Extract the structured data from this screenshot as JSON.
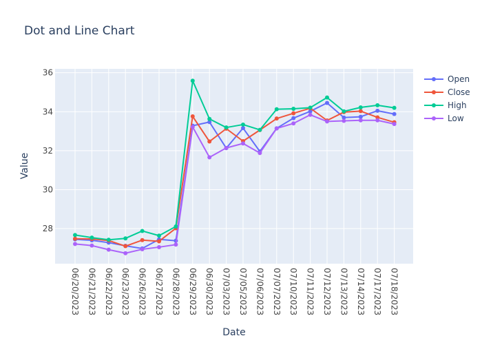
{
  "chart_data": {
    "type": "line",
    "title": "Dot and Line Chart",
    "xlabel": "Date",
    "ylabel": "Value",
    "categories": [
      "06/20/2023",
      "06/21/2023",
      "06/22/2023",
      "06/23/2023",
      "06/26/2023",
      "06/27/2023",
      "06/28/2023",
      "06/29/2023",
      "06/30/2023",
      "07/03/2023",
      "07/05/2023",
      "07/06/2023",
      "07/07/2023",
      "07/10/2023",
      "07/11/2023",
      "07/12/2023",
      "07/13/2023",
      "07/14/2023",
      "07/17/2023",
      "07/18/2023"
    ],
    "ylim": [
      26.2,
      36.2
    ],
    "yticks": [
      28,
      30,
      32,
      34,
      36
    ],
    "grid": true,
    "legend_position": "top-right",
    "background_color": "#e5ecf6",
    "mode": "lines+markers",
    "series": [
      {
        "name": "Open",
        "color": "#636efa",
        "values": [
          27.45,
          27.4,
          27.28,
          27.12,
          26.98,
          27.45,
          27.38,
          33.28,
          33.47,
          32.13,
          33.16,
          31.96,
          33.15,
          33.67,
          34.02,
          34.45,
          33.7,
          33.74,
          34.05,
          33.88
        ]
      },
      {
        "name": "Close",
        "color": "#ef553b",
        "values": [
          27.48,
          27.47,
          27.39,
          27.1,
          27.41,
          27.35,
          28.02,
          33.76,
          32.47,
          33.13,
          32.49,
          33.06,
          33.65,
          33.92,
          34.18,
          33.55,
          33.98,
          34.03,
          33.71,
          33.46
        ]
      },
      {
        "name": "High",
        "color": "#00cc96",
        "values": [
          27.67,
          27.54,
          27.43,
          27.5,
          27.88,
          27.64,
          28.11,
          35.59,
          33.63,
          33.19,
          33.34,
          33.07,
          34.13,
          34.15,
          34.21,
          34.73,
          34.02,
          34.22,
          34.33,
          34.2
        ]
      },
      {
        "name": "Low",
        "color": "#ab63fa",
        "values": [
          27.21,
          27.13,
          26.92,
          26.74,
          26.94,
          27.05,
          27.18,
          33.22,
          31.66,
          32.14,
          32.37,
          31.88,
          33.14,
          33.4,
          33.84,
          33.5,
          33.53,
          33.56,
          33.56,
          33.37
        ]
      }
    ]
  }
}
